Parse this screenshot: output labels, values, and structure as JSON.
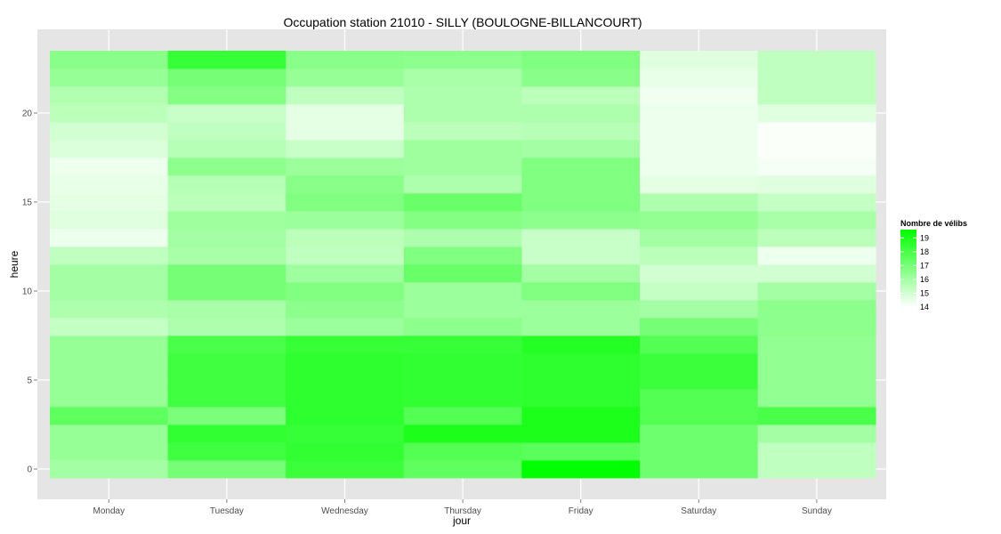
{
  "chart_data": {
    "type": "heatmap",
    "title": "Occupation station 21010 - SILLY (BOULOGNE-BILLANCOURT)",
    "xlabel": "jour",
    "ylabel": "heure",
    "x_categories": [
      "Monday",
      "Tuesday",
      "Wednesday",
      "Thursday",
      "Friday",
      "Saturday",
      "Sunday"
    ],
    "y_values": [
      0,
      1,
      2,
      3,
      4,
      5,
      6,
      7,
      8,
      9,
      10,
      11,
      12,
      13,
      14,
      15,
      16,
      17,
      18,
      19,
      20,
      21,
      22,
      23
    ],
    "y_ticks": [
      0,
      5,
      10,
      15,
      20
    ],
    "ylim": [
      -0.5,
      23.5
    ],
    "grid": true,
    "color_scale": {
      "low": "#ffffff",
      "high": "#00ff00",
      "min": 14,
      "max": 19.6
    },
    "legend": {
      "title": "Nombre de vélibs",
      "labels": [
        19,
        18,
        17,
        16,
        15,
        14
      ],
      "placement": "right"
    },
    "series": [
      {
        "day": "Monday",
        "values": [
          16.0,
          16.3,
          16.3,
          17.5,
          16.3,
          16.3,
          16.3,
          16.3,
          15.3,
          15.8,
          16.0,
          16.0,
          15.4,
          14.4,
          14.7,
          14.6,
          14.5,
          14.4,
          14.8,
          15.0,
          15.5,
          15.7,
          16.3,
          16.6
        ]
      },
      {
        "day": "Tuesday",
        "values": [
          17.0,
          18.2,
          18.5,
          16.9,
          18.2,
          18.2,
          18.2,
          18.0,
          15.8,
          15.9,
          17.0,
          17.0,
          15.9,
          16.0,
          16.1,
          15.5,
          15.6,
          16.5,
          15.6,
          15.4,
          15.2,
          16.7,
          17.0,
          18.4
        ]
      },
      {
        "day": "Wednesday",
        "values": [
          18.3,
          18.5,
          18.4,
          18.6,
          18.6,
          18.6,
          18.6,
          18.4,
          16.2,
          16.5,
          16.8,
          16.1,
          15.4,
          15.5,
          16.2,
          16.8,
          16.6,
          16.2,
          15.2,
          14.6,
          14.6,
          15.4,
          16.3,
          16.6
        ]
      },
      {
        "day": "Thursday",
        "values": [
          17.5,
          17.8,
          19.0,
          17.8,
          18.5,
          18.5,
          18.5,
          18.4,
          16.5,
          16.2,
          16.2,
          17.3,
          16.8,
          15.8,
          16.7,
          17.3,
          15.8,
          16.1,
          16.1,
          15.5,
          15.8,
          15.8,
          15.9,
          16.5
        ]
      },
      {
        "day": "Friday",
        "values": [
          19.6,
          17.6,
          19.0,
          19.0,
          18.6,
          18.6,
          18.6,
          18.8,
          16.2,
          16.2,
          16.8,
          16.0,
          15.2,
          15.2,
          16.5,
          16.8,
          16.8,
          16.8,
          16.0,
          15.6,
          15.8,
          15.5,
          16.6,
          16.8
        ]
      },
      {
        "day": "Saturday",
        "values": [
          17.2,
          17.2,
          17.2,
          17.8,
          17.8,
          18.3,
          18.3,
          17.8,
          17.0,
          16.0,
          15.3,
          15.0,
          15.5,
          16.0,
          16.4,
          15.8,
          14.6,
          14.4,
          14.4,
          14.4,
          14.4,
          14.3,
          14.5,
          14.7
        ]
      },
      {
        "day": "Sunday",
        "values": [
          15.4,
          15.4,
          16.0,
          18.0,
          16.4,
          16.4,
          16.4,
          16.4,
          16.5,
          16.5,
          16.0,
          15.0,
          14.4,
          15.5,
          15.9,
          15.3,
          14.7,
          14.2,
          14.1,
          14.1,
          14.7,
          15.4,
          15.4,
          15.4
        ]
      }
    ]
  }
}
